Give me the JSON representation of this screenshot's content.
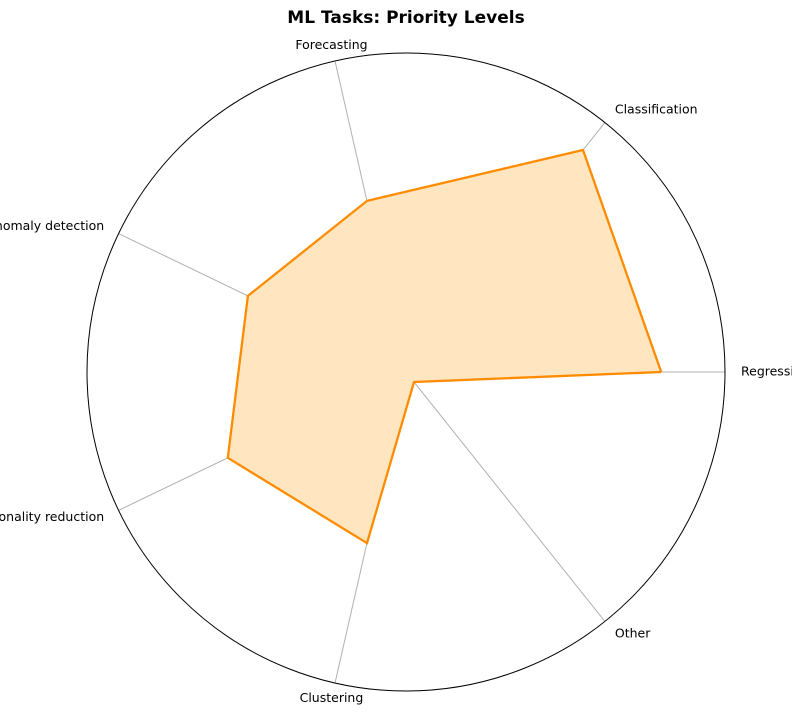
{
  "chart_data": {
    "type": "radar",
    "title": "ML Tasks: Priority Levels",
    "categories": [
      "Regression",
      "Classification",
      "Forecasting",
      "Outlier/anomaly detection",
      "Dimensionality reduction",
      "Clustering",
      "Other"
    ],
    "series": [
      {
        "values": [
          0.8,
          0.89,
          0.55,
          0.55,
          0.62,
          0.55,
          0.04
        ]
      }
    ],
    "rlim": [
      0,
      1
    ],
    "grid": true,
    "colors": {
      "line": "#ff8c00",
      "fill": "#ffe6c0",
      "spoke": "#b0b0b0",
      "frame": "#000000"
    }
  }
}
